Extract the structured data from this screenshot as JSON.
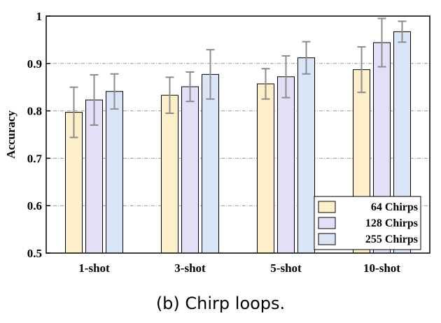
{
  "caption": "(b) Chirp loops.",
  "chart_data": {
    "type": "bar",
    "title": "",
    "xlabel": "",
    "ylabel": "Accuracy",
    "ylim": [
      0.5,
      1.0
    ],
    "yticks": [
      0.5,
      0.6,
      0.7,
      0.8,
      0.9,
      1.0
    ],
    "ytick_labels": [
      "0.5",
      "0.6",
      "0.7",
      "0.8",
      "0.9",
      "1"
    ],
    "grid": "horizontal dashed",
    "legend_position": "bottom-right",
    "categories": [
      "1-shot",
      "3-shot",
      "5-shot",
      "10-shot"
    ],
    "series": [
      {
        "name": "64 Chirps",
        "color": "#fdefc8",
        "values": [
          0.797,
          0.833,
          0.857,
          0.887
        ],
        "errors": [
          0.053,
          0.038,
          0.032,
          0.048
        ]
      },
      {
        "name": "128 Chirps",
        "color": "#e4dff6",
        "values": [
          0.823,
          0.851,
          0.872,
          0.944
        ],
        "errors": [
          0.053,
          0.031,
          0.044,
          0.051
        ]
      },
      {
        "name": "255 Chirps",
        "color": "#d8e6f8",
        "values": [
          0.841,
          0.877,
          0.912,
          0.967
        ],
        "errors": [
          0.037,
          0.052,
          0.034,
          0.022
        ]
      }
    ]
  }
}
